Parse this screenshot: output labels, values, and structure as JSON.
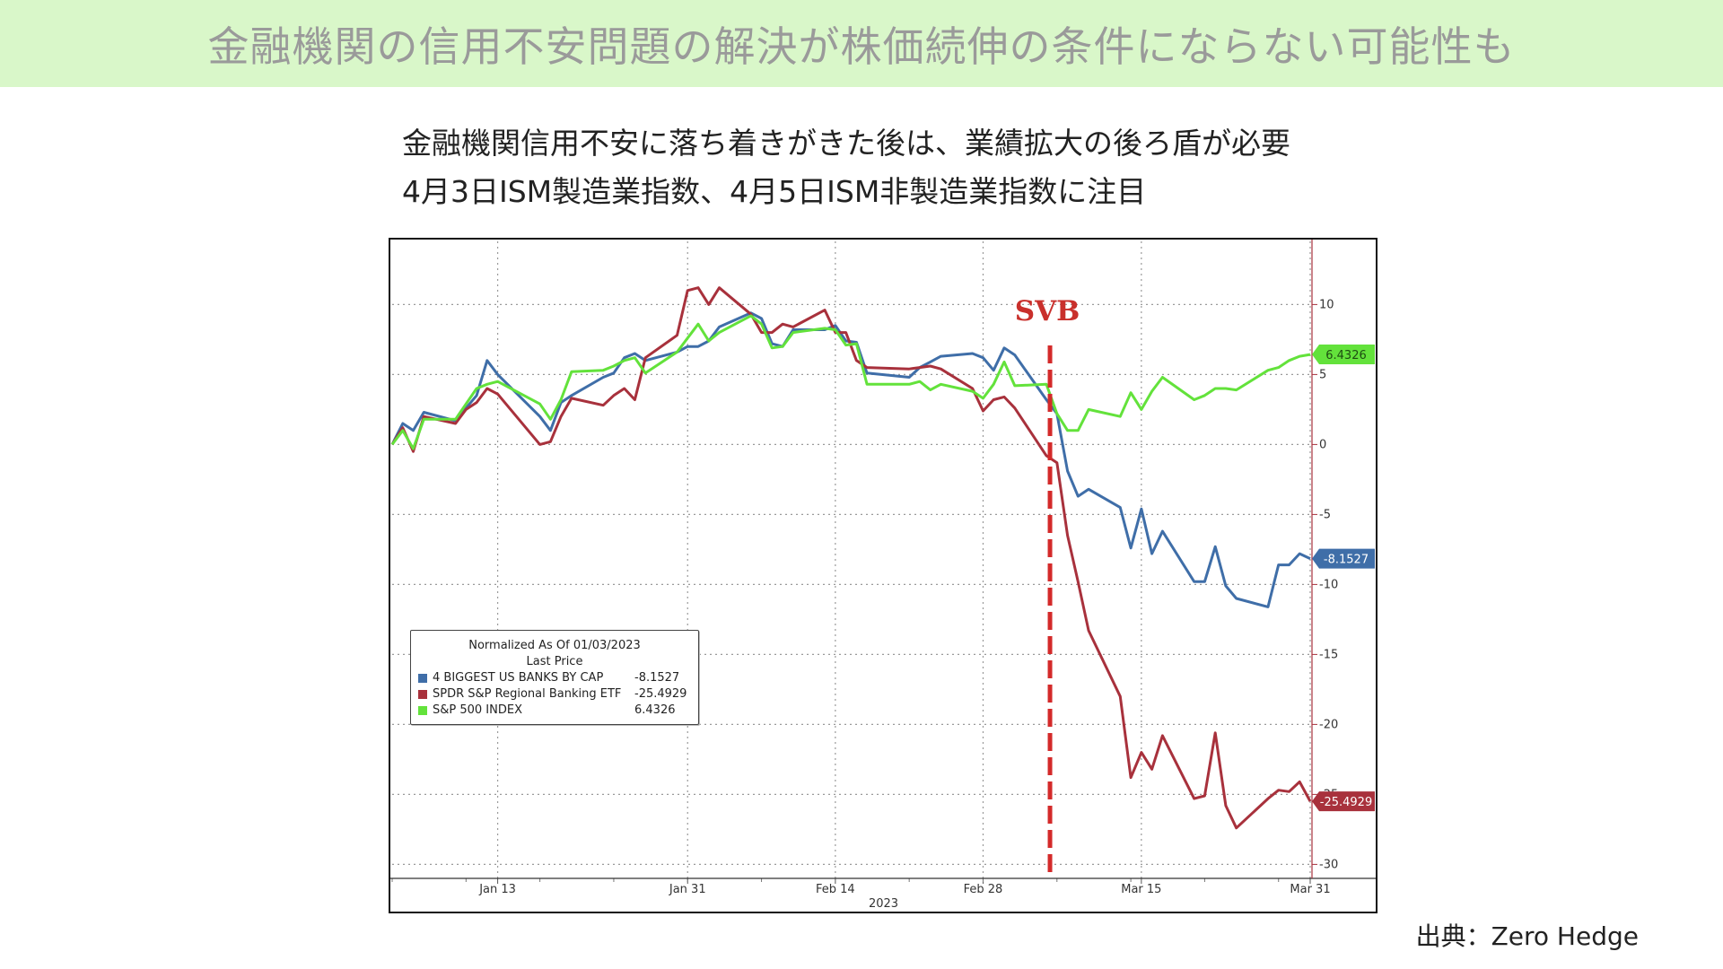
{
  "header": {
    "title": "金融機関の信用不安問題の解決が株価続伸の条件にならない可能性も"
  },
  "subtitle": {
    "line1": "金融機関信用不安に落ち着きがきた後は、業績拡大の後ろ盾が必要",
    "line2": "4月3日ISM製造業指数、4月5日ISM非製造業指数に注目"
  },
  "source": "出典：Zero Hedge",
  "chart_data": {
    "type": "line",
    "xlabel": "2023",
    "ylabel": "",
    "x_ticks": [
      "Jan 13",
      "Jan 31",
      "Feb 14",
      "Feb 28",
      "Mar 15",
      "Mar 31"
    ],
    "y_ticks": [
      10,
      5,
      0,
      -5,
      -10,
      -15,
      -20,
      -25,
      -30
    ],
    "ylim": [
      -31,
      14
    ],
    "grid": true,
    "annotation": "SVB",
    "legend": {
      "header1": "Normalized As Of 01/03/2023",
      "header2": "Last Price",
      "placement": "lower-left"
    },
    "x": [
      "2023-01-03",
      "2023-01-04",
      "2023-01-05",
      "2023-01-06",
      "2023-01-09",
      "2023-01-10",
      "2023-01-11",
      "2023-01-12",
      "2023-01-13",
      "2023-01-17",
      "2023-01-18",
      "2023-01-19",
      "2023-01-20",
      "2023-01-23",
      "2023-01-24",
      "2023-01-25",
      "2023-01-26",
      "2023-01-27",
      "2023-01-30",
      "2023-01-31",
      "2023-02-01",
      "2023-02-02",
      "2023-02-03",
      "2023-02-06",
      "2023-02-07",
      "2023-02-08",
      "2023-02-09",
      "2023-02-10",
      "2023-02-13",
      "2023-02-14",
      "2023-02-15",
      "2023-02-16",
      "2023-02-17",
      "2023-02-21",
      "2023-02-22",
      "2023-02-23",
      "2023-02-24",
      "2023-02-27",
      "2023-02-28",
      "2023-03-01",
      "2023-03-02",
      "2023-03-03",
      "2023-03-06",
      "2023-03-07",
      "2023-03-08",
      "2023-03-09",
      "2023-03-10",
      "2023-03-13",
      "2023-03-14",
      "2023-03-15",
      "2023-03-16",
      "2023-03-17",
      "2023-03-20",
      "2023-03-21",
      "2023-03-22",
      "2023-03-23",
      "2023-03-24",
      "2023-03-27",
      "2023-03-28",
      "2023-03-29",
      "2023-03-30",
      "2023-03-31"
    ],
    "series": [
      {
        "name": "4 BIGGEST US BANKS BY CAP",
        "last_price": "-8.1527",
        "label": "-8.1527",
        "color": "#3f6ea8",
        "values": [
          0.0,
          1.5,
          1.0,
          2.3,
          1.7,
          2.6,
          3.5,
          6.0,
          5.0,
          2.0,
          1.0,
          3.0,
          3.5,
          4.8,
          5.1,
          6.2,
          6.5,
          6.0,
          6.6,
          7.0,
          7.0,
          7.4,
          8.4,
          9.4,
          9.0,
          7.2,
          7.0,
          8.2,
          8.2,
          8.5,
          7.4,
          7.3,
          5.1,
          4.8,
          5.5,
          5.9,
          6.3,
          6.5,
          6.2,
          5.3,
          6.9,
          6.4,
          3.2,
          2.2,
          -1.9,
          -3.7,
          -3.2,
          -4.5,
          -7.4,
          -4.6,
          -7.8,
          -6.2,
          -9.8,
          -9.8,
          -7.3,
          -10.1,
          -11.0,
          -11.6,
          -8.6,
          -8.6,
          -7.8,
          -8.1527
        ]
      },
      {
        "name": "SPDR S&P Regional Banking ETF",
        "last_price": "-25.4929",
        "label": "-25.4929",
        "color": "#a8313c",
        "values": [
          0.0,
          1.2,
          -0.5,
          2.0,
          1.5,
          2.5,
          3.0,
          4.0,
          3.6,
          0.0,
          0.2,
          2.0,
          3.3,
          2.8,
          3.5,
          4.0,
          3.2,
          6.2,
          7.8,
          11.0,
          11.2,
          10.0,
          11.2,
          9.3,
          8.0,
          8.0,
          8.6,
          8.4,
          9.6,
          8.0,
          8.0,
          6.0,
          5.5,
          5.4,
          5.5,
          5.6,
          5.4,
          4.0,
          2.4,
          3.2,
          3.4,
          2.6,
          -0.8,
          -1.3,
          -6.5,
          -9.8,
          -13.3,
          -18.0,
          -23.8,
          -22.0,
          -23.2,
          -20.8,
          -25.3,
          -25.1,
          -20.6,
          -25.8,
          -27.4,
          -25.3,
          -24.7,
          -24.8,
          -24.1,
          -25.4929
        ]
      },
      {
        "name": "S&P 500 INDEX",
        "last_price": "6.4326",
        "label": "6.4326",
        "color": "#63e23b",
        "values": [
          0.0,
          1.0,
          -0.3,
          1.8,
          1.8,
          2.9,
          4.0,
          4.3,
          4.5,
          2.9,
          1.8,
          3.2,
          5.2,
          5.3,
          5.6,
          6.0,
          6.2,
          5.1,
          6.6,
          7.6,
          8.6,
          7.4,
          8.0,
          9.2,
          8.6,
          6.9,
          7.0,
          8.0,
          8.3,
          8.2,
          7.1,
          7.2,
          4.3,
          4.3,
          4.5,
          3.9,
          4.3,
          3.8,
          3.3,
          4.3,
          5.9,
          4.2,
          4.3,
          2.2,
          1.0,
          1.0,
          2.5,
          2.0,
          3.7,
          2.5,
          3.8,
          4.8,
          3.2,
          3.5,
          4.0,
          4.0,
          3.9,
          5.3,
          5.5,
          6.0,
          6.3,
          6.4326
        ]
      }
    ]
  }
}
